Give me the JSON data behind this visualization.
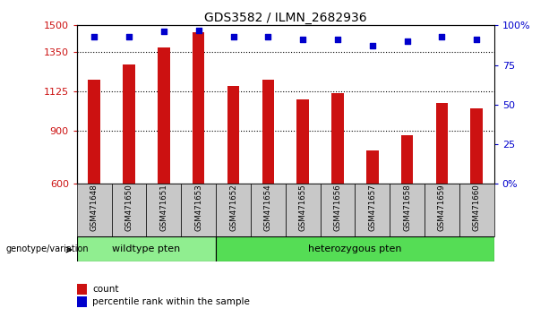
{
  "title": "GDS3582 / ILMN_2682936",
  "samples": [
    "GSM471648",
    "GSM471650",
    "GSM471651",
    "GSM471653",
    "GSM471652",
    "GSM471654",
    "GSM471655",
    "GSM471656",
    "GSM471657",
    "GSM471658",
    "GSM471659",
    "GSM471660"
  ],
  "bar_values": [
    1190,
    1280,
    1375,
    1460,
    1155,
    1190,
    1080,
    1115,
    790,
    875,
    1060,
    1030
  ],
  "dot_values": [
    93,
    93,
    96,
    97,
    93,
    93,
    91,
    91,
    87,
    90,
    93,
    91
  ],
  "ylim_left": [
    600,
    1500
  ],
  "ylim_right": [
    0,
    100
  ],
  "yticks_left": [
    600,
    900,
    1125,
    1350,
    1500
  ],
  "yticks_right": [
    0,
    25,
    50,
    75,
    100
  ],
  "yticklabels_left": [
    "600",
    "900",
    "1125",
    "1350",
    "1500"
  ],
  "yticklabels_right": [
    "0",
    "25",
    "50",
    "75",
    "100%"
  ],
  "bar_color": "#cc1111",
  "dot_color": "#0000cc",
  "wildtype_samples": 4,
  "wildtype_label": "wildtype pten",
  "heterozygous_label": "heterozygous pten",
  "wildtype_color": "#90ee90",
  "heterozygous_color": "#55dd55",
  "sample_box_color": "#c8c8c8",
  "legend_count_label": "count",
  "legend_pct_label": "percentile rank within the sample",
  "genotype_label": "genotype/variation"
}
